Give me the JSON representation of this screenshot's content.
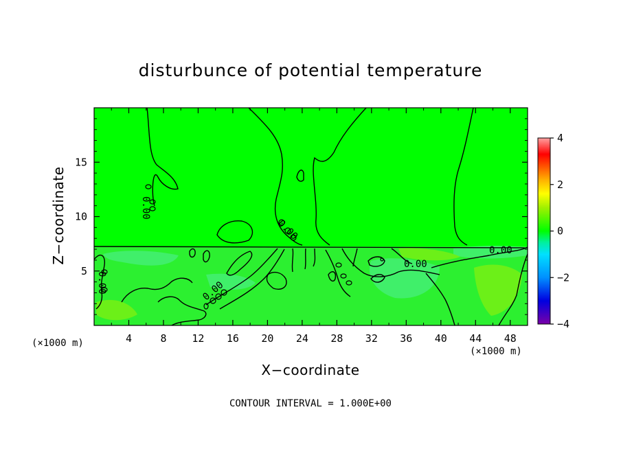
{
  "chart_data": {
    "type": "heatmap",
    "title": "disturbunce of potential temperature",
    "xlabel": "X−coordinate",
    "ylabel": "Z−coordinate",
    "x_unit_label_left": "(×1000 m)",
    "x_unit_label_right": "(×1000 m)",
    "footer": "CONTOUR INTERVAL = 1.000E+00",
    "xlim": [
      0,
      50
    ],
    "ylim": [
      0,
      20
    ],
    "xticks": [
      4,
      8,
      12,
      16,
      20,
      24,
      28,
      32,
      36,
      40,
      44,
      48
    ],
    "yticks": [
      5,
      10,
      15
    ],
    "contour_interval": 1.0,
    "contour_labels": [
      "0.00",
      "0.00",
      "0.00",
      "0.00",
      "0.00",
      "0.00"
    ],
    "colorbar": {
      "min": -4,
      "max": 4,
      "ticks": [
        -4,
        -2,
        0,
        2,
        4
      ],
      "stops": [
        {
          "v": -4.0,
          "c": "#7a00a8"
        },
        {
          "v": -3.0,
          "c": "#0000e0"
        },
        {
          "v": -2.0,
          "c": "#0090ff"
        },
        {
          "v": -1.0,
          "c": "#00e0ff"
        },
        {
          "v": -0.5,
          "c": "#00f0a0"
        },
        {
          "v": 0.0,
          "c": "#00ff00"
        },
        {
          "v": 1.0,
          "c": "#a0f000"
        },
        {
          "v": 1.6,
          "c": "#ffff00"
        },
        {
          "v": 2.2,
          "c": "#ffb000"
        },
        {
          "v": 2.8,
          "c": "#ff5000"
        },
        {
          "v": 3.3,
          "c": "#ff0000"
        },
        {
          "v": 4.0,
          "c": "#ffa0a0"
        }
      ]
    },
    "field_colors": {
      "upper": "#00ff00",
      "lower": "#2cf030",
      "cool": "#40ef6a",
      "warm": "#6cf018"
    }
  }
}
